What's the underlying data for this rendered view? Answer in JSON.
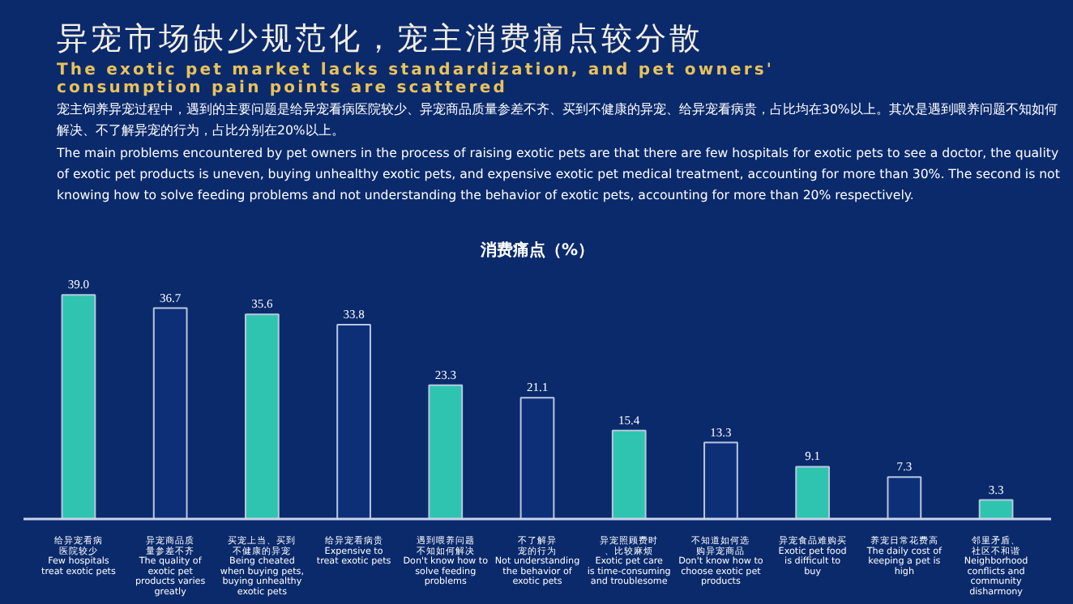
{
  "chart_data": {
    "type": "bar",
    "title": "异宠市场缺少规范化，宠主消费痛点较分散",
    "subtitle": "The exotic pet market lacks standardization, and pet owners' consumption pain points are scattered",
    "annotations": [
      "宠主饲养异宠过程中，遇到的主要问题是给异宠看病医院较少、异宠商品质量参差不齐、买到不健康的异宠、给异宠看病贵，占比均在30%以上。其次是遇到喂养问题不知如何解决、不了解异宠的行为，占比分别在20%以上。",
      "The main problems encountered by pet owners in the process of raising exotic pets are that there are few hospitals for exotic pets to see a doctor, the quality of exotic pet products is uneven, buying unhealthy exotic pets, and expensive exotic pet medical treatment, accounting for more than 30%. The second is not knowing how to solve feeding problems and not understanding the behavior of exotic pets, accounting for more than 20% respectively.",
      "消费痛点（%）"
    ],
    "categories": [
      "给异宠看病医院较少 Few hospitals treat exotic pets",
      "异宠商品质量参差不齐 The quality of exotic pet products varies greatly",
      "买宠上当、买到不健康的异宠 Being cheated when buying pets, buying unhealthy exotic pets",
      "给异宠看病贵 Expensive to treat exotic pets",
      "遇到喂养问题不知如何解决 Don't know how to solve feeding problems",
      "不了解异宠的行为 Not understanding the behavior of exotic pets",
      "异宠照顾费时、比较麻烦 Exotic pet care is time-consuming and troublesome",
      "不知道如何选购异宠商品 Don't know how to choose exotic pet products",
      "异宠食品难购买 Exotic pet food is difficult to buy",
      "养宠日常花费高 The daily cost of keeping a pet is high",
      "邻里矛盾、社区不和谐 Neighborhood conflicts and community disharmony"
    ],
    "values": [
      39.0,
      36.7,
      35.6,
      33.8,
      23.3,
      21.1,
      15.4,
      13.3,
      9.1,
      7.3,
      3.3
    ],
    "colors": [
      "#2ec4b0",
      "#0d2f78",
      "#2ec4b0",
      "#0d2f78",
      "#2ec4b0",
      "#0d2f78",
      "#2ec4b0",
      "#0d2f78",
      "#2ec4b0",
      "#0d2f78",
      "#2ec4b0"
    ],
    "value_labels": [
      "39.0",
      "36.7",
      "35.6",
      "33.8",
      "23.3",
      "21.1",
      "15.4",
      "13.3",
      "9.1",
      "7.3",
      "3.3"
    ]
  }
}
